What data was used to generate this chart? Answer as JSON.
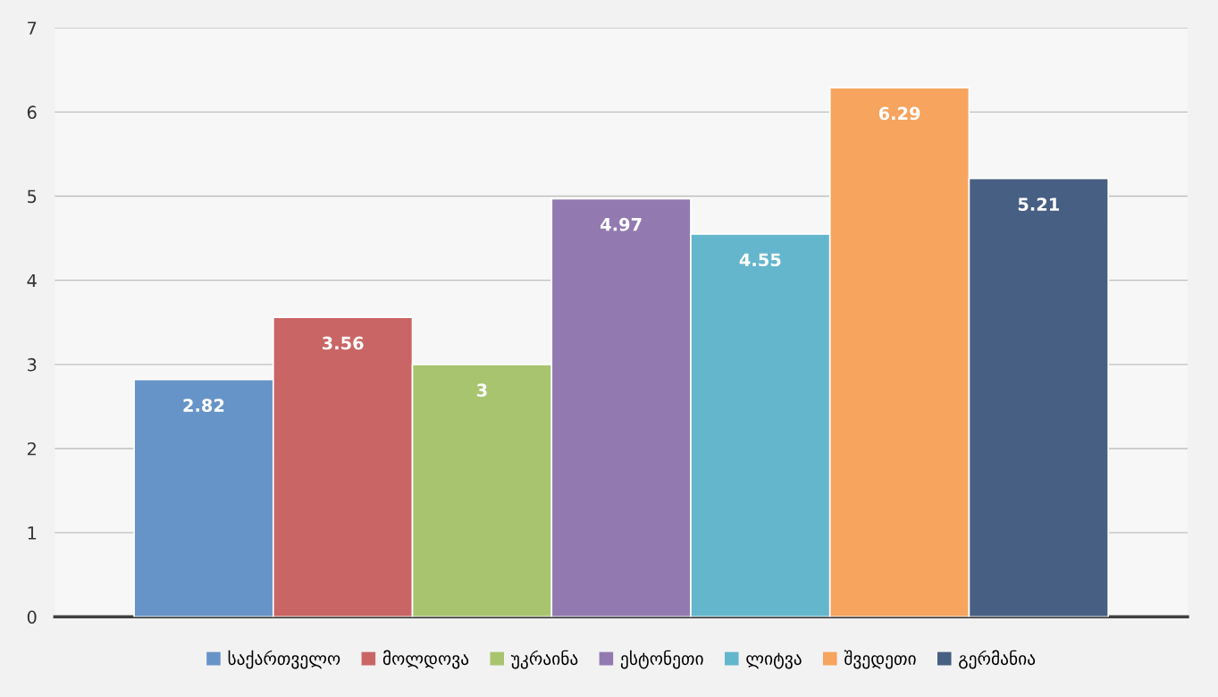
{
  "chart_data": {
    "type": "bar",
    "categories": [
      null
    ],
    "series": [
      {
        "name": "საქართველო",
        "color": "#6794c8",
        "values": [
          2.82
        ]
      },
      {
        "name": "მოლდოვა",
        "color": "#c96564",
        "values": [
          3.56
        ]
      },
      {
        "name": "უკრაინა",
        "color": "#a9c46f",
        "values": [
          3
        ]
      },
      {
        "name": "ესტონეთი",
        "color": "#927ab0",
        "values": [
          4.97
        ]
      },
      {
        "name": "ლიტვა",
        "color": "#64b6cc",
        "values": [
          4.55
        ]
      },
      {
        "name": "შვედეთი",
        "color": "#f6a45e",
        "values": [
          6.29
        ]
      },
      {
        "name": "გერმანია",
        "color": "#475f82",
        "values": [
          5.21
        ]
      }
    ],
    "ylim": [
      0,
      7
    ],
    "yticks": [
      0,
      1,
      2,
      3,
      4,
      5,
      6,
      7
    ],
    "grid": "y",
    "legend": "bottom",
    "data_labels": true
  }
}
